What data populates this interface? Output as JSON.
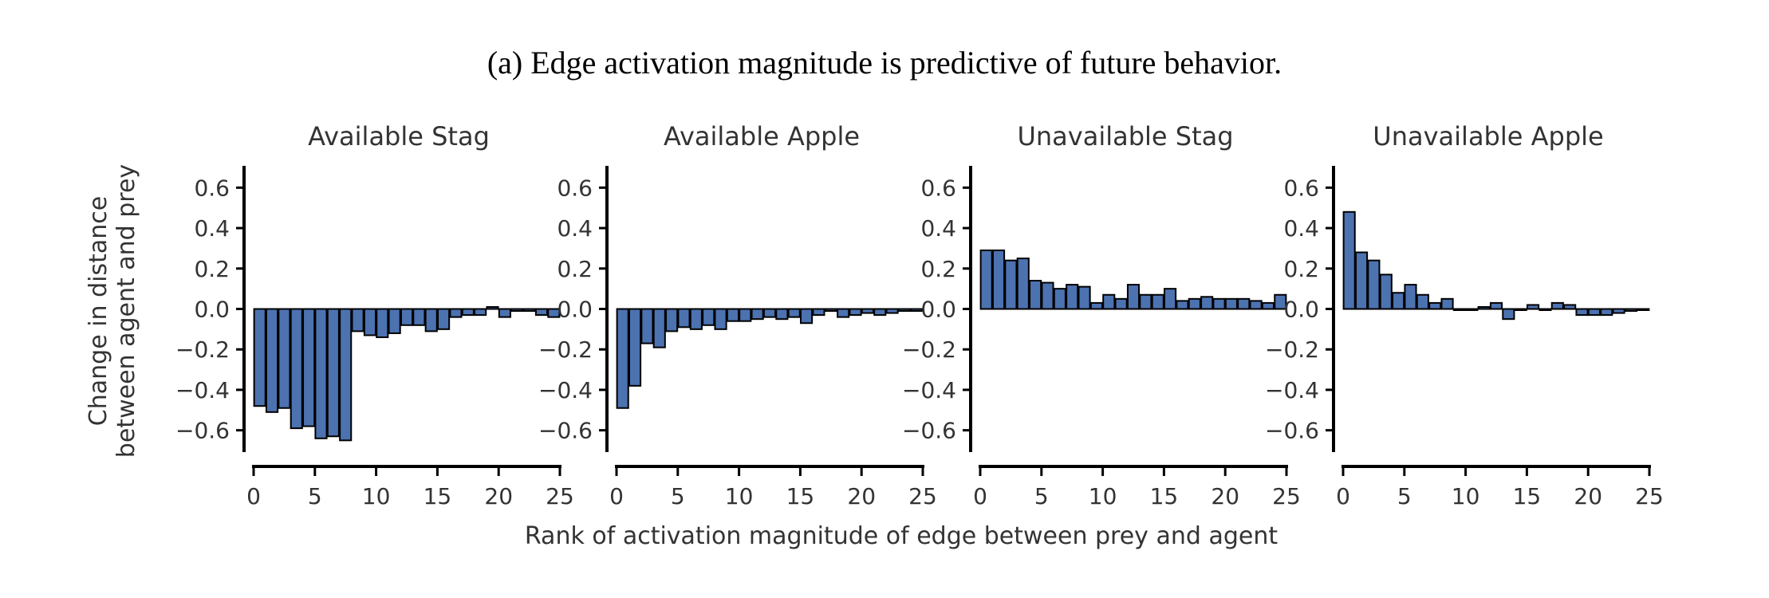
{
  "caption": "(a) Edge activation magnitude is predictive of future behavior.",
  "chart_data": {
    "type": "bar",
    "xlabel": "Rank of activation magnitude of edge between prey and agent",
    "ylabel_lines": [
      "Change in distance",
      "between agent and prey"
    ],
    "xlim": [
      0,
      25
    ],
    "ylim": [
      -0.7,
      0.7
    ],
    "xticks": [
      0,
      5,
      10,
      15,
      20,
      25
    ],
    "yticks": [
      -0.6,
      -0.4,
      -0.2,
      0.0,
      0.2,
      0.4,
      0.6
    ],
    "ytick_labels": [
      "−0.6",
      "−0.4",
      "−0.2",
      "0.0",
      "0.2",
      "0.4",
      "0.6"
    ],
    "grid": false,
    "bar_color": "#4c72b0",
    "panels": [
      {
        "title": "Available Stag",
        "x": [
          0,
          1,
          2,
          3,
          4,
          5,
          6,
          7,
          8,
          9,
          10,
          11,
          12,
          13,
          14,
          15,
          16,
          17,
          18,
          19,
          20,
          21,
          22,
          23,
          24
        ],
        "values": [
          -0.48,
          -0.51,
          -0.49,
          -0.59,
          -0.58,
          -0.64,
          -0.63,
          -0.65,
          -0.11,
          -0.13,
          -0.14,
          -0.12,
          -0.08,
          -0.08,
          -0.11,
          -0.1,
          -0.04,
          -0.03,
          -0.03,
          0.01,
          -0.04,
          -0.01,
          -0.01,
          -0.03,
          -0.04
        ]
      },
      {
        "title": "Available Apple",
        "x": [
          0,
          1,
          2,
          3,
          4,
          5,
          6,
          7,
          8,
          9,
          10,
          11,
          12,
          13,
          14,
          15,
          16,
          17,
          18,
          19,
          20,
          21,
          22,
          23,
          24
        ],
        "values": [
          -0.49,
          -0.38,
          -0.17,
          -0.19,
          -0.11,
          -0.09,
          -0.1,
          -0.08,
          -0.1,
          -0.06,
          -0.06,
          -0.05,
          -0.04,
          -0.05,
          -0.04,
          -0.07,
          -0.03,
          -0.01,
          -0.04,
          -0.03,
          -0.02,
          -0.03,
          -0.02,
          -0.01,
          -0.01
        ]
      },
      {
        "title": "Unavailable Stag",
        "x": [
          0,
          1,
          2,
          3,
          4,
          5,
          6,
          7,
          8,
          9,
          10,
          11,
          12,
          13,
          14,
          15,
          16,
          17,
          18,
          19,
          20,
          21,
          22,
          23,
          24
        ],
        "values": [
          0.29,
          0.29,
          0.24,
          0.25,
          0.14,
          0.13,
          0.1,
          0.12,
          0.11,
          0.03,
          0.07,
          0.05,
          0.12,
          0.07,
          0.07,
          0.1,
          0.04,
          0.05,
          0.06,
          0.05,
          0.05,
          0.05,
          0.04,
          0.03,
          0.07
        ]
      },
      {
        "title": "Unavailable Apple",
        "x": [
          0,
          1,
          2,
          3,
          4,
          5,
          6,
          7,
          8,
          9,
          10,
          11,
          12,
          13,
          14,
          15,
          16,
          17,
          18,
          19,
          20,
          21,
          22,
          23,
          24
        ],
        "values": [
          0.48,
          0.28,
          0.24,
          0.17,
          0.08,
          0.12,
          0.07,
          0.03,
          0.05,
          0.0,
          0.0,
          0.01,
          0.03,
          -0.05,
          0.0,
          0.02,
          0.0,
          0.03,
          0.02,
          -0.03,
          -0.03,
          -0.03,
          -0.02,
          -0.01,
          0.0
        ]
      }
    ]
  }
}
